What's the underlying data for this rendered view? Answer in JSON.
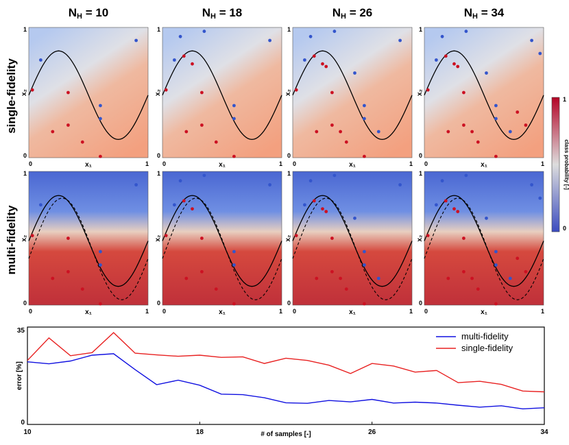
{
  "figure": {
    "column_titles": [
      {
        "main": "N",
        "sub": "H",
        "rest": " = 10"
      },
      {
        "main": "N",
        "sub": "H",
        "rest": " = 18"
      },
      {
        "main": "N",
        "sub": "H",
        "rest": " = 26"
      },
      {
        "main": "N",
        "sub": "H",
        "rest": " = 34"
      }
    ],
    "row_labels": [
      "single-fidelity",
      "multi-fidelity"
    ],
    "panel_axis": {
      "x_label": "x₁",
      "y_label": "x₂",
      "tick_min": "0",
      "tick_max": "1"
    },
    "colorbar": {
      "label": "class probability [-]",
      "tick_max": "1",
      "tick_min": "0"
    },
    "colors": {
      "blue": "#3b4cc0",
      "red": "#b40426",
      "neutral": "#dddddd",
      "line_blue": "#1010e0",
      "line_red": "#e82020"
    }
  },
  "chart_data": {
    "type": "line",
    "xlabel": "# of samples [-]",
    "ylabel": "error [%]",
    "xlim": [
      10,
      34
    ],
    "ylim": [
      0,
      35
    ],
    "xticks": [
      "10",
      "18",
      "26",
      "34"
    ],
    "yticks": [
      "0",
      "35"
    ],
    "legend_position": "top-right",
    "x": [
      10,
      11,
      12,
      13,
      14,
      15,
      16,
      17,
      18,
      19,
      20,
      21,
      22,
      23,
      24,
      25,
      26,
      27,
      28,
      29,
      30,
      31,
      32,
      33,
      34
    ],
    "series": [
      {
        "name": "multi-fidelity",
        "color": "#1010e0",
        "values": [
          22.5,
          21.8,
          22.8,
          24.9,
          25.4,
          19.7,
          14.3,
          15.9,
          14.1,
          10.9,
          10.7,
          9.6,
          7.8,
          7.6,
          8.6,
          8.1,
          9.0,
          7.7,
          8.0,
          7.7,
          6.9,
          6.2,
          6.7,
          5.6,
          6.0
        ]
      },
      {
        "name": "single-fidelity",
        "color": "#e82020",
        "values": [
          23.0,
          31.1,
          24.7,
          25.8,
          33.0,
          25.6,
          25.0,
          24.5,
          24.9,
          24.1,
          24.3,
          21.9,
          23.8,
          23.0,
          21.3,
          18.3,
          21.9,
          21.0,
          18.8,
          19.4,
          15.0,
          15.5,
          14.4,
          12.0,
          11.7
        ]
      }
    ]
  }
}
